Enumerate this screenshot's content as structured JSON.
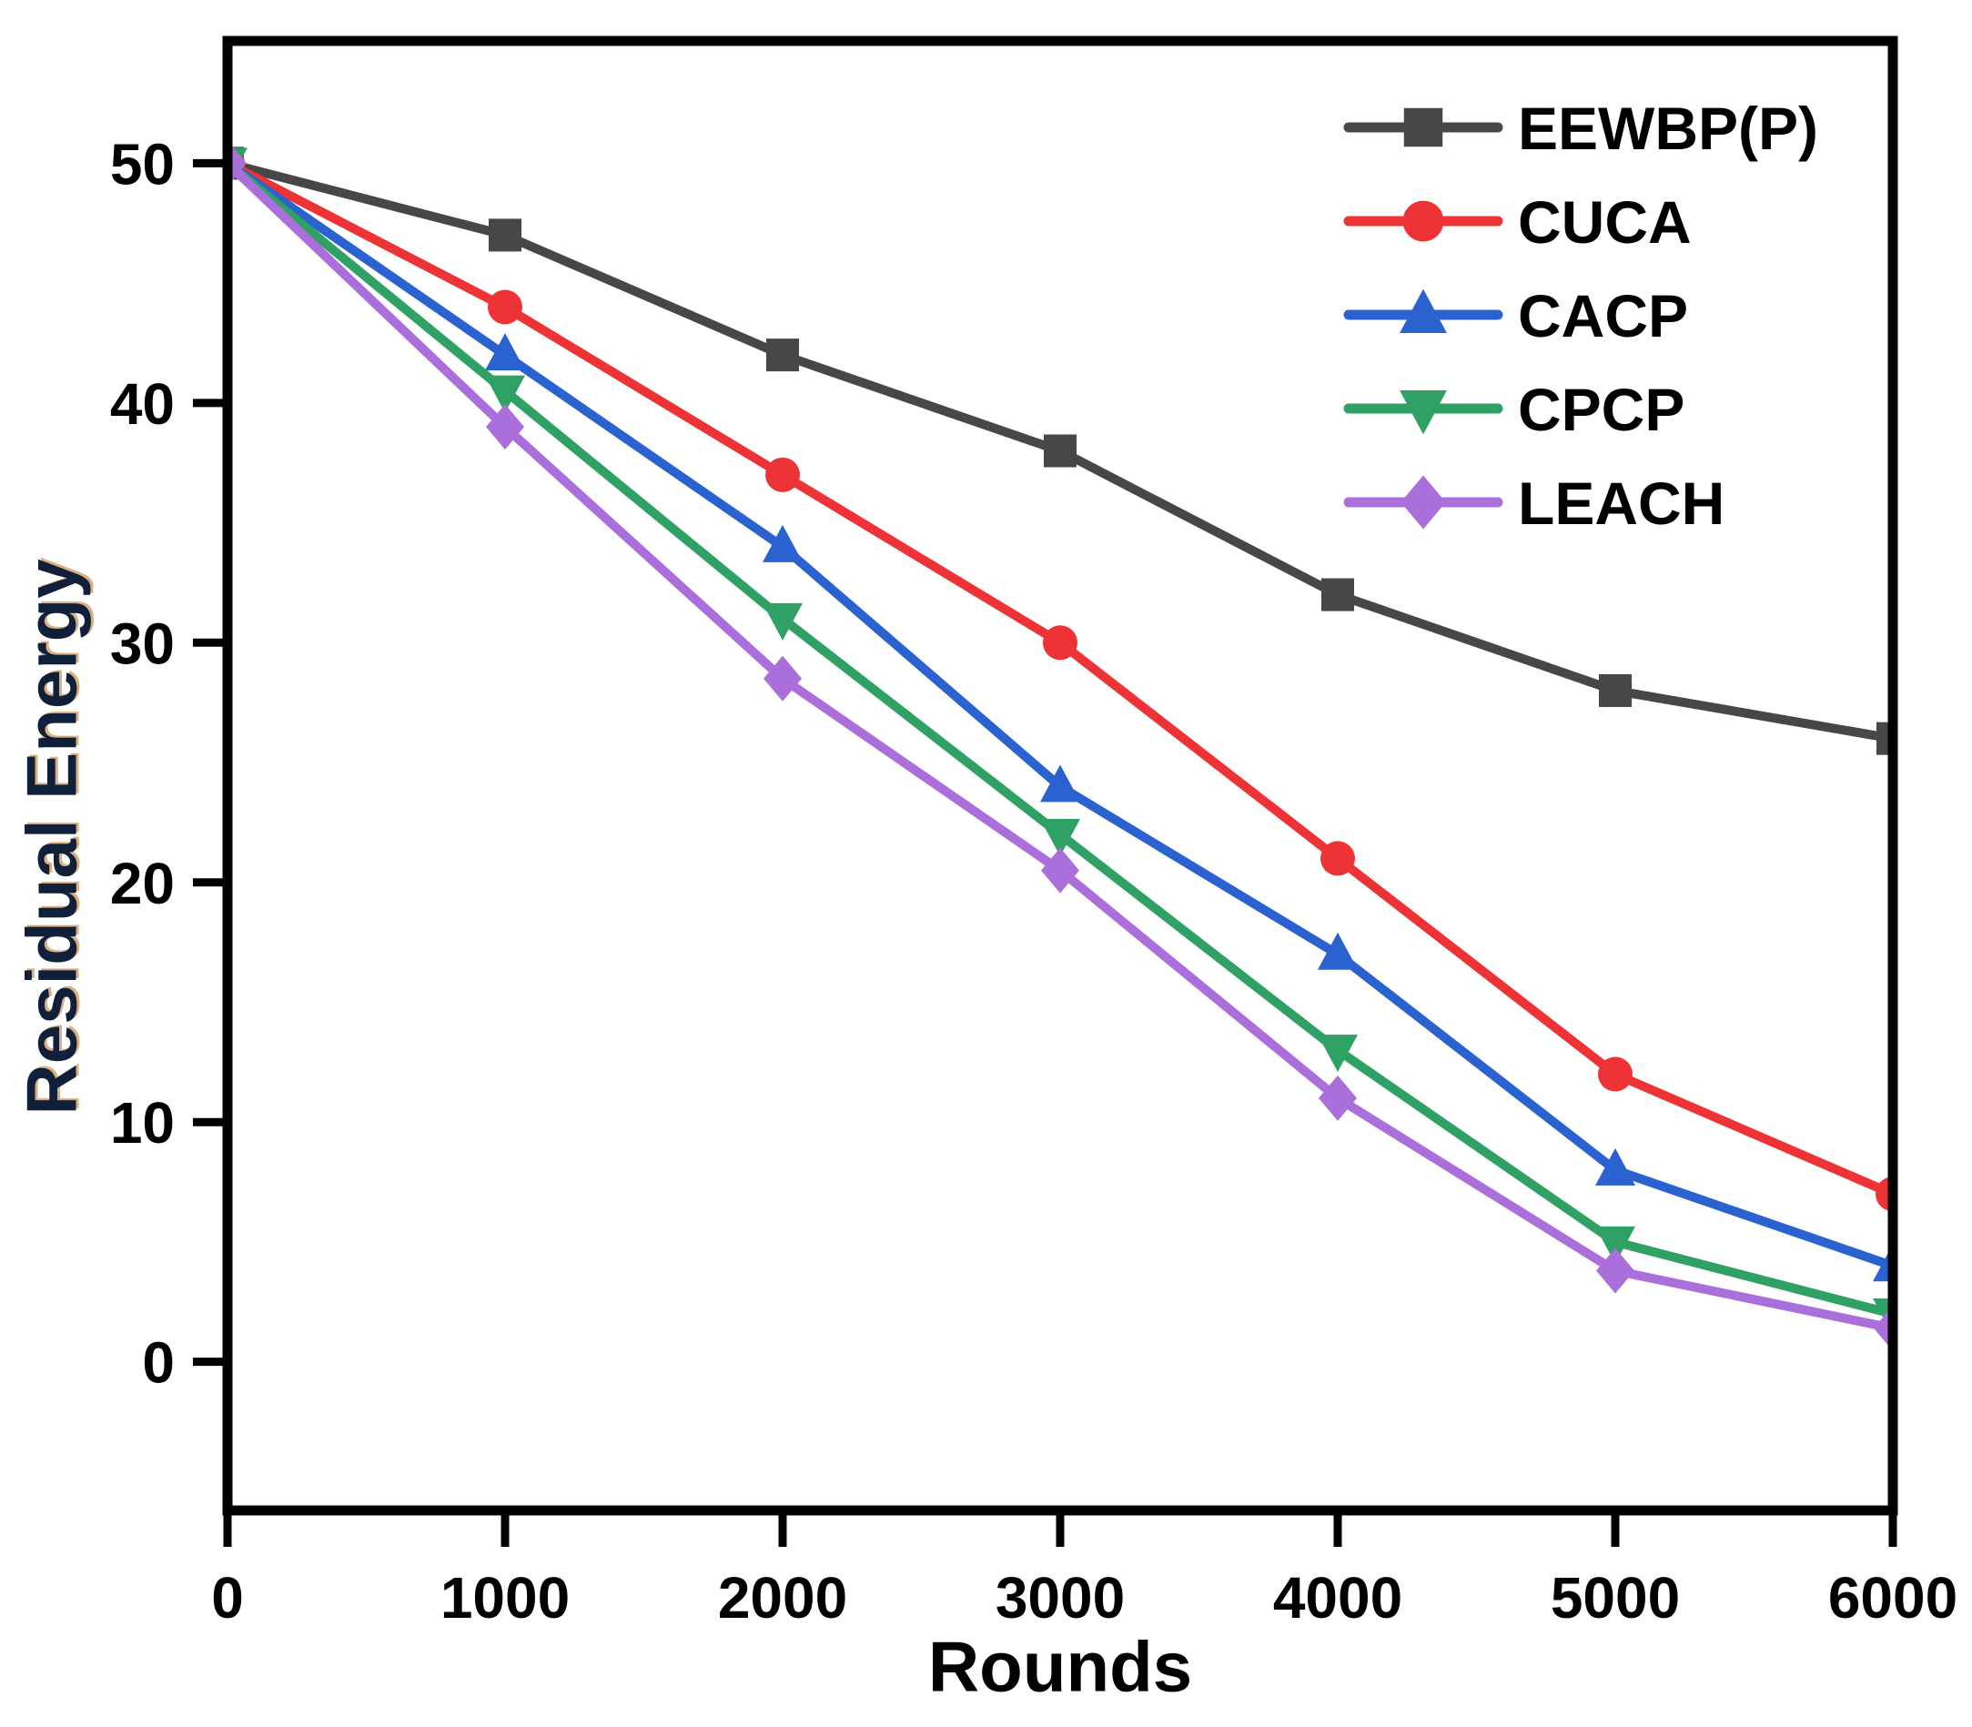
{
  "figure": {
    "background": "#ffffff"
  },
  "chart_data": {
    "type": "line",
    "title": "",
    "xlabel": "Rounds",
    "ylabel": "Residual Energy",
    "x": [
      0,
      1000,
      2000,
      3000,
      4000,
      5000,
      6000
    ],
    "x_ticks": [
      "0",
      "1000",
      "2000",
      "3000",
      "4000",
      "5000",
      "6000"
    ],
    "y_ticks": [
      "0",
      "10",
      "20",
      "30",
      "40",
      "50"
    ],
    "y_tick_values": [
      0,
      10,
      20,
      30,
      40,
      50
    ],
    "xlim": [
      0,
      6000
    ],
    "ylim": [
      -6.2,
      55.1
    ],
    "grid": false,
    "legend_position": "top-right-inside",
    "axis_color": "#000000",
    "text_color": "#000000",
    "series": [
      {
        "name": "EEWBP(P)",
        "color": "#474747",
        "marker": "square",
        "values": [
          50,
          47,
          42,
          38,
          32,
          28,
          26
        ]
      },
      {
        "name": "CUCA",
        "color": "#ee3336",
        "marker": "circle",
        "values": [
          50,
          44,
          37,
          30,
          21,
          12,
          7
        ]
      },
      {
        "name": "CACP",
        "color": "#2a62cf",
        "marker": "triangle-up",
        "values": [
          50,
          42,
          34,
          24,
          17,
          8,
          4
        ]
      },
      {
        "name": "CPCP",
        "color": "#2fa164",
        "marker": "triangle-down",
        "values": [
          50,
          40.5,
          31,
          22,
          13,
          5,
          2
        ]
      },
      {
        "name": "LEACH",
        "color": "#ab6fdc",
        "marker": "diamond",
        "values": [
          50,
          39,
          28.5,
          20.5,
          11,
          3.8,
          1.4
        ]
      }
    ]
  }
}
